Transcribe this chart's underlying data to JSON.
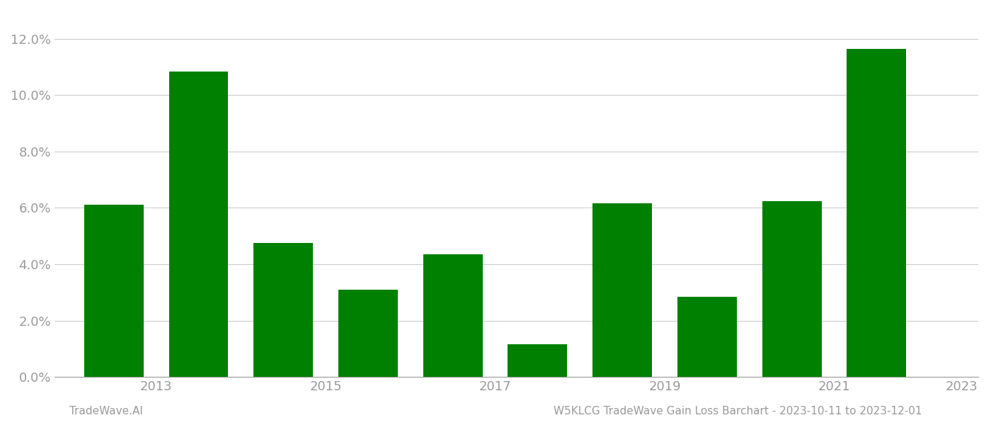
{
  "years": [
    2013,
    2014,
    2015,
    2016,
    2017,
    2018,
    2019,
    2020,
    2021,
    2022
  ],
  "values": [
    0.0612,
    0.1085,
    0.0475,
    0.031,
    0.0435,
    0.0115,
    0.0615,
    0.0285,
    0.0625,
    0.1165
  ],
  "bar_color": "#008000",
  "ylim": [
    0,
    0.13
  ],
  "yticks": [
    0.0,
    0.02,
    0.04,
    0.06,
    0.08,
    0.1,
    0.12
  ],
  "background_color": "#ffffff",
  "grid_color": "#cccccc",
  "footer_left": "TradeWave.AI",
  "footer_right": "W5KLCG TradeWave Gain Loss Barchart - 2023-10-11 to 2023-12-01",
  "footer_color": "#999999",
  "tick_color": "#999999",
  "bar_width": 0.7,
  "xlim_min": 2012.3,
  "xlim_max": 2023.2,
  "xtick_positions": [
    2013,
    2015,
    2017,
    2019,
    2021,
    2023
  ],
  "xtick_labels": [
    "2013",
    "2015",
    "2017",
    "2019",
    "2021",
    "2023"
  ]
}
